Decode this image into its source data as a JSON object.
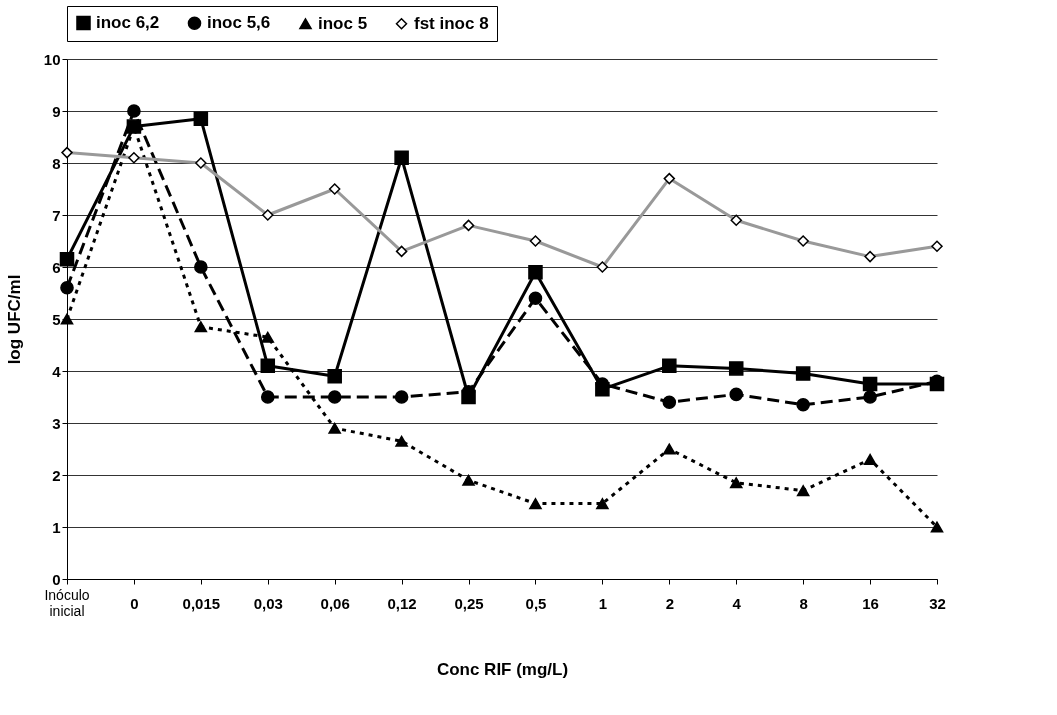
{
  "chart_data": {
    "type": "line",
    "xlabel": "Conc RIF (mg/L)",
    "ylabel": "log UFC/ml",
    "categories": [
      null,
      "0",
      "0,015",
      "0,03",
      "0,06",
      "0,12",
      "0,25",
      "0,5",
      "1",
      "2",
      "4",
      "8",
      "16",
      "32"
    ],
    "series": [
      {
        "name": "inoc 6,2",
        "color": "#000000",
        "marker": "square",
        "line_style": "solid",
        "values": [
          6.15,
          8.7,
          8.85,
          4.1,
          3.9,
          8.1,
          3.5,
          5.9,
          3.65,
          4.1,
          4.05,
          3.95,
          3.75,
          3.75
        ]
      },
      {
        "name": "inoc 5,6",
        "color": "#000000",
        "marker": "circle",
        "line_style": "dashed",
        "values": [
          5.6,
          9.0,
          6.0,
          3.5,
          3.5,
          3.5,
          3.6,
          5.4,
          3.75,
          3.4,
          3.55,
          3.35,
          3.5,
          3.8
        ]
      },
      {
        "name": "inoc 5",
        "color": "#000000",
        "marker": "triangle",
        "line_style": "dotted",
        "values": [
          5.0,
          8.7,
          4.85,
          4.65,
          2.9,
          2.65,
          1.9,
          1.45,
          1.45,
          2.5,
          1.85,
          1.7,
          2.3,
          1.0
        ]
      },
      {
        "name": "fst inoc 8",
        "color": "#999999",
        "marker": "diamond",
        "line_style": "solid",
        "values": [
          8.2,
          8.1,
          8.0,
          7.0,
          7.5,
          6.3,
          6.8,
          6.5,
          6.0,
          7.7,
          6.9,
          6.5,
          6.2,
          6.4
        ]
      }
    ],
    "ylim": [
      0,
      10
    ],
    "yticks": [
      0,
      1,
      2,
      3,
      4,
      5,
      6,
      7,
      8,
      9,
      10
    ],
    "grid": "y",
    "legend": "top",
    "annotations": [
      "Inóculo inicial"
    ]
  }
}
